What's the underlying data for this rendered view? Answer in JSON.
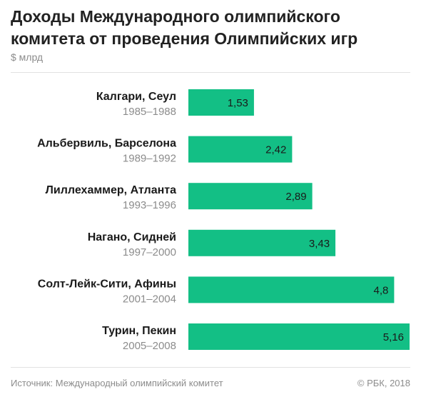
{
  "header": {
    "title": "Доходы Международного олимпийского комитета от проведения Олимпийских игр",
    "unit": "$ млрд"
  },
  "footer": {
    "source": "Источник: Международный олимпийский комитет",
    "copyright": "© РБК, 2018"
  },
  "colors": {
    "bar": "#13bf85",
    "label": "#1a1a1a",
    "period": "#8c8c8c"
  },
  "chart_data": {
    "type": "bar",
    "orientation": "horizontal",
    "categories": [
      "Калгари, Сеул",
      "Альбервиль, Барселона",
      "Лиллехаммер, Атланта",
      "Нагано, Сидней",
      "Солт-Лейк-Сити, Афины",
      "Турин, Пекин"
    ],
    "periods": [
      "1985–1988",
      "1989–1992",
      "1993–1996",
      "1997–2000",
      "2001–2004",
      "2005–2008"
    ],
    "values": [
      1.53,
      2.42,
      2.89,
      3.43,
      4.8,
      5.16
    ],
    "value_labels": [
      "1,53",
      "2,42",
      "2,89",
      "3,43",
      "4,8",
      "5,16"
    ],
    "xlim": [
      0,
      5.16
    ],
    "grid": false,
    "legend": "none"
  }
}
